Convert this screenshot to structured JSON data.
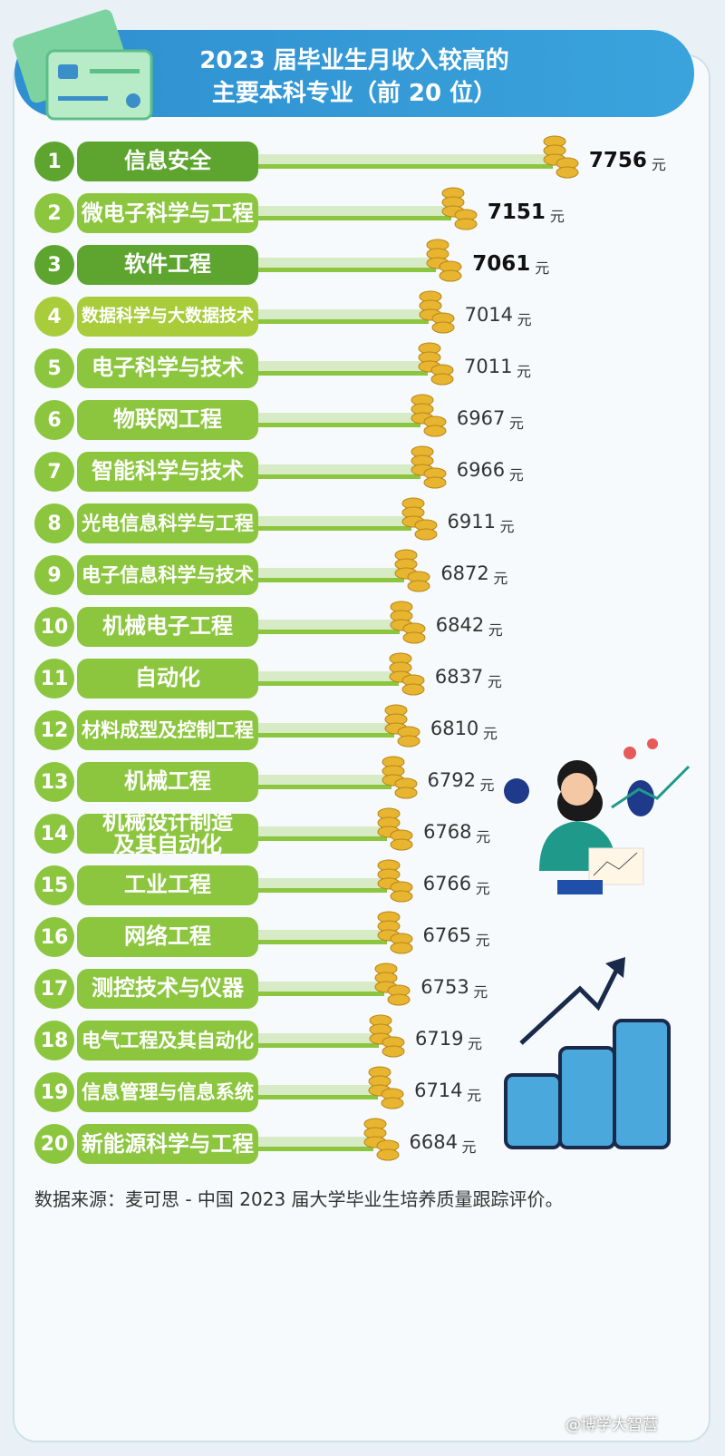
{
  "chart_data": {
    "type": "bar",
    "title": [
      "2023 届毕业生月收入较高的",
      "主要本科专业（前 20 位）"
    ],
    "ranks": [
      1,
      2,
      3,
      4,
      5,
      6,
      7,
      8,
      9,
      10,
      11,
      12,
      13,
      14,
      15,
      16,
      17,
      18,
      19,
      20
    ],
    "categories": [
      "信息安全",
      "微电子科学与工程",
      "软件工程",
      "数据科学与大数据技术",
      "电子科学与技术",
      "物联网工程",
      "智能科学与技术",
      "光电信息科学与工程",
      "电子信息科学与技术",
      "机械电子工程",
      "自动化",
      "材料成型及控制工程",
      "机械工程",
      "机械设计制造\n及其自动化",
      "工业工程",
      "网络工程",
      "测控技术与仪器",
      "电气工程及其自动化",
      "信息管理与信息系统",
      "新能源科学与工程"
    ],
    "values": [
      7756,
      7151,
      7061,
      7014,
      7011,
      6967,
      6966,
      6911,
      6872,
      6842,
      6837,
      6810,
      6792,
      6768,
      6766,
      6765,
      6753,
      6719,
      6714,
      6684
    ],
    "unit": "元",
    "colors": [
      "#5ea52f",
      "#8cc63f",
      "#5ea52f",
      "#a8cc3a",
      "#8cc63f",
      "#8cc63f",
      "#8cc63f",
      "#8cc63f",
      "#8cc63f",
      "#8cc63f",
      "#8cc63f",
      "#8cc63f",
      "#8cc63f",
      "#8cc63f",
      "#8cc63f",
      "#8cc63f",
      "#8cc63f",
      "#8cc63f",
      "#8cc63f",
      "#8cc63f"
    ],
    "xlim": [
      6000,
      8000
    ],
    "source": "数据来源：麦可思 - 中国 2023 届大学毕业生培养质量跟踪评价。",
    "credit": "@博学大智营"
  }
}
